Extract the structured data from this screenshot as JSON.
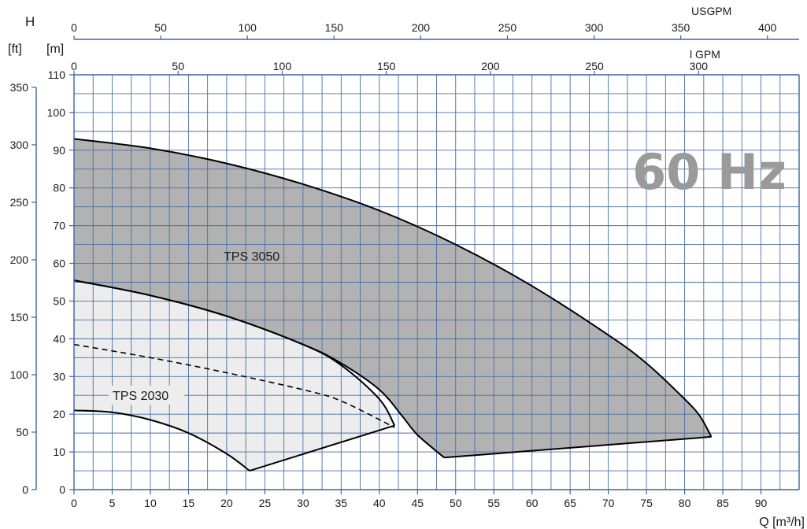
{
  "chart_data": {
    "type": "area",
    "frequency_label": "60 Hz",
    "axes": {
      "y_symbol": "H",
      "y_unit_ft": "[ft]",
      "y_unit_m": "[m]",
      "x_label": "Q [m³/h]",
      "usgpm_label": "USGPM",
      "lgpm_label": "l GPM",
      "x_range_m3h": [
        0,
        95
      ],
      "y_range_m": [
        0,
        110
      ],
      "x_ticks": [
        0,
        5,
        10,
        15,
        20,
        25,
        30,
        35,
        40,
        45,
        50,
        55,
        60,
        65,
        70,
        75,
        80,
        85,
        90
      ],
      "y_ticks": [
        0,
        10,
        20,
        30,
        40,
        50,
        60,
        70,
        80,
        90,
        100,
        110
      ],
      "ft_ticks": [
        0,
        50,
        100,
        150,
        200,
        250,
        300,
        350
      ],
      "usgpm_ticks": [
        0,
        50,
        100,
        150,
        200,
        250,
        300,
        350,
        400
      ],
      "lgpm_ticks": [
        0,
        50,
        100,
        150,
        200,
        250,
        300
      ],
      "grid": true
    },
    "series": [
      {
        "name": "TPS 3050",
        "color": "#b2b2b2",
        "upper_curve": [
          [
            0,
            93
          ],
          [
            10,
            90.5
          ],
          [
            20,
            86.5
          ],
          [
            30,
            81
          ],
          [
            40,
            74
          ],
          [
            50,
            65
          ],
          [
            60,
            54
          ],
          [
            70,
            41
          ],
          [
            75,
            33.5
          ],
          [
            80,
            24
          ],
          [
            82,
            19.5
          ],
          [
            83.5,
            14
          ]
        ],
        "lower_curve": [
          [
            0,
            55.5
          ],
          [
            10,
            51.5
          ],
          [
            20,
            46
          ],
          [
            30,
            38.5
          ],
          [
            35,
            33.5
          ],
          [
            40,
            26.5
          ],
          [
            43,
            19.5
          ],
          [
            45,
            14.5
          ],
          [
            48.5,
            8.5
          ]
        ],
        "min_flow_line": [
          [
            48.5,
            8.5
          ],
          [
            83.5,
            14
          ]
        ]
      },
      {
        "name": "TPS 2030",
        "color": "#ededed",
        "upper_curve": [
          [
            0,
            55.5
          ],
          [
            10,
            51.5
          ],
          [
            20,
            46
          ],
          [
            30,
            38.5
          ],
          [
            35,
            33
          ],
          [
            40,
            24
          ],
          [
            42,
            17
          ]
        ],
        "lower_curve": [
          [
            0,
            21
          ],
          [
            5,
            20.5
          ],
          [
            10,
            18.5
          ],
          [
            15,
            15
          ],
          [
            20,
            9.5
          ],
          [
            23,
            5
          ]
        ],
        "min_flow_line": [
          [
            23,
            5
          ],
          [
            42,
            17
          ]
        ],
        "dashed_curve": [
          [
            0,
            38.5
          ],
          [
            10,
            35
          ],
          [
            20,
            31
          ],
          [
            30,
            26.5
          ],
          [
            35,
            23.5
          ],
          [
            42,
            16.5
          ]
        ]
      }
    ]
  }
}
